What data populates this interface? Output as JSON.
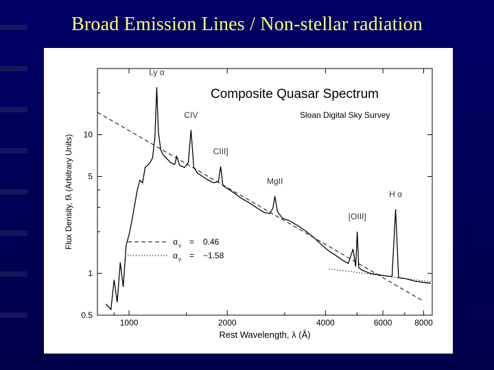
{
  "slide": {
    "title": "Broad Emission Lines / Non-stellar radiation"
  },
  "colors": {
    "background": "#000060",
    "title": "#ffff66",
    "stripe": "#1a1a66",
    "plot_line": "#000000"
  },
  "chart_data": {
    "type": "line",
    "title": "Composite Quasar Spectrum",
    "subtitle": "Sloan Digital Sky Survey",
    "xlabel": "Rest Wavelength, λ (Å)",
    "ylabel": "Flux Density, fλ (Arbitrary Units)",
    "xscale": "log",
    "yscale": "log",
    "xlim": [
      800,
      8500
    ],
    "ylim": [
      0.5,
      30
    ],
    "x_ticks": [
      "1000",
      "2000",
      "4000",
      "6000",
      "8000"
    ],
    "y_ticks": [
      "0.5",
      "1",
      "5",
      "10"
    ],
    "legend": {
      "placement": "lower-left",
      "entries": [
        {
          "symbol": "α",
          "subscript": "ν",
          "eq": "=",
          "value": "0.46",
          "style": "dashed"
        },
        {
          "symbol": "α",
          "subscript": "ν",
          "eq": "=",
          "value": "−1.58",
          "style": "dotted"
        }
      ]
    },
    "annotations": [
      {
        "text": "Ly α",
        "x": 1216
      },
      {
        "text": "CIV",
        "x": 1549
      },
      {
        "text": "CIII]",
        "x": 1909
      },
      {
        "text": "MgII",
        "x": 2800
      },
      {
        "text": "[OIII]",
        "x": 5007
      },
      {
        "text": "H α",
        "x": 6563
      }
    ],
    "series": [
      {
        "style": "solid",
        "x": [
          850,
          880,
          900,
          920,
          940,
          960,
          980,
          1000,
          1020,
          1040,
          1060,
          1080,
          1100,
          1120,
          1140,
          1160,
          1180,
          1200,
          1216,
          1230,
          1250,
          1270,
          1300,
          1340,
          1380,
          1400,
          1430,
          1480,
          1520,
          1549,
          1580,
          1620,
          1680,
          1750,
          1820,
          1880,
          1909,
          1940,
          2000,
          2100,
          2200,
          2300,
          2400,
          2500,
          2600,
          2700,
          2760,
          2800,
          2850,
          2950,
          3100,
          3300,
          3500,
          3700,
          3900,
          4100,
          4300,
          4500,
          4700,
          4861,
          4950,
          5007,
          5060,
          5200,
          5500,
          5800,
          6100,
          6400,
          6563,
          6700,
          7000,
          7500,
          8000,
          8400
        ],
        "y": [
          0.6,
          0.55,
          0.9,
          0.62,
          1.2,
          0.8,
          1.6,
          1.9,
          2.4,
          3.1,
          4.0,
          4.7,
          4.5,
          5.8,
          6.0,
          6.3,
          6.8,
          9.5,
          22.0,
          10.5,
          7.8,
          7.2,
          6.8,
          6.3,
          6.1,
          7.0,
          6.0,
          5.8,
          6.3,
          10.8,
          5.8,
          5.3,
          5.0,
          4.7,
          4.5,
          4.6,
          5.9,
          4.3,
          4.1,
          3.8,
          3.5,
          3.3,
          3.1,
          2.9,
          2.75,
          2.7,
          2.95,
          3.6,
          2.8,
          2.5,
          2.4,
          2.2,
          2.0,
          1.8,
          1.6,
          1.45,
          1.35,
          1.25,
          1.18,
          1.5,
          1.12,
          2.0,
          1.1,
          1.05,
          1.0,
          0.98,
          0.96,
          0.95,
          2.9,
          0.93,
          0.92,
          0.88,
          0.86,
          0.85
        ]
      },
      {
        "style": "dashed",
        "x": [
          800,
          8000
        ],
        "y": [
          14.5,
          0.63
        ]
      },
      {
        "style": "dotted",
        "x": [
          4100,
          8400
        ],
        "y": [
          1.08,
          0.87
        ]
      }
    ]
  }
}
